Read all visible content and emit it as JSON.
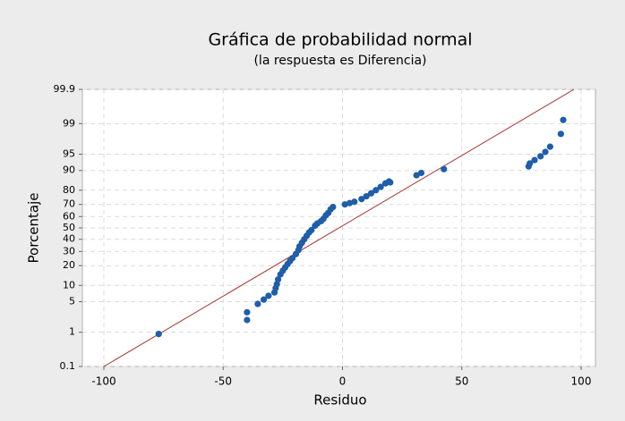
{
  "chart_data": {
    "type": "scatter",
    "title": "Gráfica de probabilidad normal",
    "subtitle": "(la respuesta es Diferencia)",
    "xlabel": "Residuo",
    "ylabel": "Porcentaje",
    "yscale": "normal",
    "grid": true,
    "xlim": [
      -109,
      106
    ],
    "ylim": [
      0.1,
      99.9
    ],
    "xticks": [
      -100,
      -50,
      0,
      50,
      100
    ],
    "yticks": [
      0.1,
      1,
      5,
      10,
      20,
      30,
      40,
      50,
      60,
      70,
      80,
      90,
      95,
      99,
      99.9
    ],
    "reference_line": {
      "color": "#a83232",
      "x": [
        -100,
        97
      ],
      "y": [
        0.1,
        99.9
      ]
    },
    "series": [
      {
        "color": "#1f5ea8",
        "x": [
          -77,
          -40,
          -40,
          -35.5,
          -33,
          -31,
          -28.5,
          -28,
          -27.5,
          -27,
          -26,
          -25,
          -24,
          -23,
          -22,
          -21,
          -19.5,
          -18.5,
          -18,
          -17,
          -16,
          -15,
          -14,
          -13,
          -11.5,
          -10.5,
          -9,
          -8,
          -7,
          -6,
          -5,
          -4,
          1,
          3,
          5,
          8,
          10,
          12,
          14,
          16,
          18,
          19.5,
          20,
          31,
          33,
          42.5,
          78,
          78.5,
          80.5,
          83,
          85,
          87,
          91.5,
          92.5
        ],
        "values": [
          0.9,
          3,
          2,
          4.5,
          5.5,
          6.5,
          7.5,
          9,
          10.5,
          12.5,
          15,
          17,
          19,
          21,
          23,
          25,
          28,
          31,
          34,
          37,
          40,
          43,
          46,
          48,
          52,
          54,
          56,
          58,
          61,
          63,
          66,
          68,
          70,
          71,
          72,
          74,
          76,
          78,
          80,
          82,
          84,
          85,
          84.5,
          88,
          89,
          90.5,
          91.5,
          92.5,
          93.5,
          94.5,
          95.5,
          96.5,
          98.2,
          99.2
        ]
      }
    ]
  }
}
